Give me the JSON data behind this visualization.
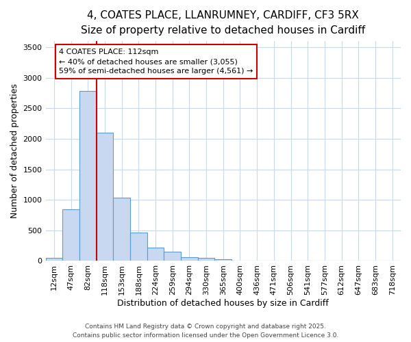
{
  "title_line1": "4, COATES PLACE, LLANRUMNEY, CARDIFF, CF3 5RX",
  "title_line2": "Size of property relative to detached houses in Cardiff",
  "xlabel": "Distribution of detached houses by size in Cardiff",
  "ylabel": "Number of detached properties",
  "categories": [
    "12sqm",
    "47sqm",
    "82sqm",
    "118sqm",
    "153sqm",
    "188sqm",
    "224sqm",
    "259sqm",
    "294sqm",
    "330sqm",
    "365sqm",
    "400sqm",
    "436sqm",
    "471sqm",
    "506sqm",
    "541sqm",
    "577sqm",
    "612sqm",
    "647sqm",
    "683sqm",
    "718sqm"
  ],
  "values": [
    55,
    850,
    2780,
    2100,
    1040,
    460,
    215,
    155,
    65,
    45,
    22,
    5,
    1,
    0,
    0,
    0,
    0,
    0,
    0,
    0,
    0
  ],
  "bar_color": "#c8d8f0",
  "bar_edgecolor": "#5b9bd5",
  "vline_index": 2,
  "vline_color": "#cc0000",
  "annotation_line1": "4 COATES PLACE: 112sqm",
  "annotation_line2": "← 40% of detached houses are smaller (3,055)",
  "annotation_line3": "59% of semi-detached houses are larger (4,561) →",
  "annotation_box_color": "#cc0000",
  "ylim": [
    0,
    3600
  ],
  "yticks": [
    0,
    500,
    1000,
    1500,
    2000,
    2500,
    3000,
    3500
  ],
  "background_color": "#ffffff",
  "grid_color": "#c8d8f0",
  "footer_line1": "Contains HM Land Registry data © Crown copyright and database right 2025.",
  "footer_line2": "Contains public sector information licensed under the Open Government Licence 3.0.",
  "title_fontsize": 11,
  "subtitle_fontsize": 10,
  "ylabel_fontsize": 9,
  "xlabel_fontsize": 9,
  "tick_fontsize": 8,
  "annotation_fontsize": 8,
  "footer_fontsize": 6.5
}
